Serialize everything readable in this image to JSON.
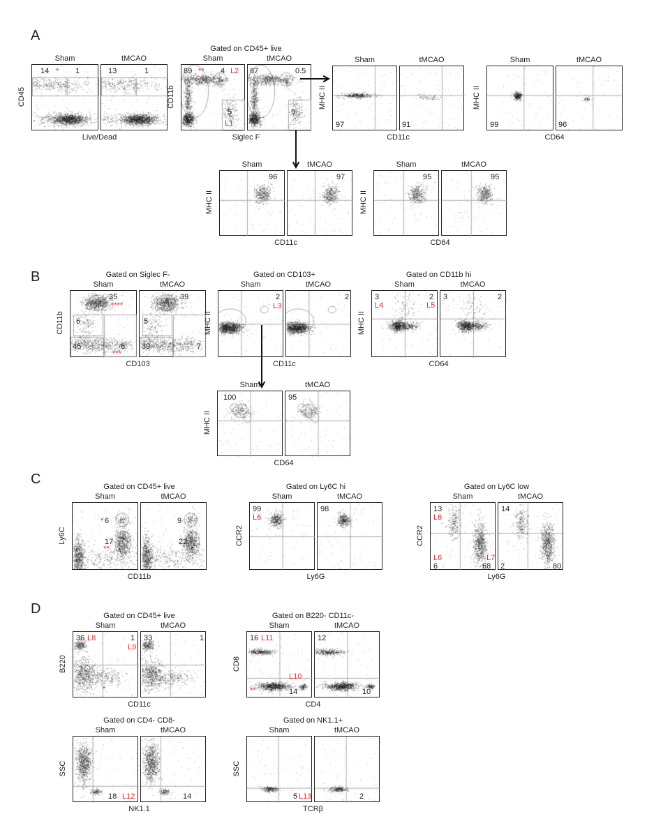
{
  "colors": {
    "text": "#222222",
    "highlight": "#e8262a",
    "gate": "#aaaaaa"
  },
  "panels": [
    {
      "letter": "A"
    },
    {
      "letter": "B"
    },
    {
      "letter": "C"
    },
    {
      "letter": "D"
    }
  ],
  "groups": [
    {
      "id": "A1",
      "title": "",
      "x_axis": "Live/Dead",
      "y_axis": "CD45",
      "plots": [
        {
          "condition": "Sham",
          "labels": [
            {
              "text": "14"
            },
            {
              "text": "*",
              "red": true
            },
            {
              "text": "1"
            }
          ]
        },
        {
          "condition": "tMCAO",
          "labels": [
            {
              "text": "13"
            },
            {
              "text": "1"
            }
          ]
        }
      ]
    },
    {
      "id": "A2",
      "title": "Gated on CD45+ live",
      "x_axis": "Siglec F",
      "y_axis": "CD11b",
      "plots": [
        {
          "condition": "Sham",
          "labels": [
            {
              "text": "89"
            },
            {
              "text": "**",
              "red": true
            },
            {
              "text": "4"
            },
            {
              "text": "L2",
              "red": true
            },
            {
              "text": "5"
            },
            {
              "text": "L1",
              "red": true
            }
          ]
        },
        {
          "condition": "tMCAO",
          "labels": [
            {
              "text": "87"
            },
            {
              "text": "0.5"
            },
            {
              "text": "9"
            }
          ]
        }
      ]
    },
    {
      "id": "A3",
      "title": "",
      "x_axis": "CD11c",
      "y_axis": "MHC II",
      "plots": [
        {
          "condition": "Sham",
          "labels": [
            {
              "text": "97"
            }
          ]
        },
        {
          "condition": "tMCAO",
          "labels": [
            {
              "text": "91"
            }
          ]
        }
      ]
    },
    {
      "id": "A4",
      "title": "",
      "x_axis": "CD64",
      "y_axis": "MHC II",
      "plots": [
        {
          "condition": "Sham",
          "labels": [
            {
              "text": "99"
            }
          ]
        },
        {
          "condition": "tMCAO",
          "labels": [
            {
              "text": "96"
            }
          ]
        }
      ]
    },
    {
      "id": "A5",
      "title": "",
      "x_axis": "CD11c",
      "y_axis": "MHC II",
      "plots": [
        {
          "condition": "Sham",
          "labels": [
            {
              "text": "96"
            }
          ]
        },
        {
          "condition": "tMCAO",
          "labels": [
            {
              "text": "97"
            }
          ]
        }
      ]
    },
    {
      "id": "A6",
      "title": "",
      "x_axis": "CD64",
      "y_axis": "MHC II",
      "plots": [
        {
          "condition": "Sham",
          "labels": [
            {
              "text": "95"
            }
          ]
        },
        {
          "condition": "tMCAO",
          "labels": [
            {
              "text": "95"
            }
          ]
        }
      ]
    },
    {
      "id": "B1",
      "title": "Gated on Siglec F-",
      "x_axis": "CD103",
      "y_axis": "CD11b",
      "plots": [
        {
          "condition": "Sham",
          "labels": [
            {
              "text": "35"
            },
            {
              "text": "****",
              "red": true
            },
            {
              "text": "6"
            },
            {
              "text": "45"
            },
            {
              "text": "6"
            },
            {
              "text": "***",
              "red": true
            }
          ]
        },
        {
          "condition": "tMCAO",
          "labels": [
            {
              "text": "39"
            },
            {
              "text": "5"
            },
            {
              "text": "39"
            },
            {
              "text": "7"
            }
          ]
        }
      ]
    },
    {
      "id": "B2",
      "title": "Gated on CD103+",
      "x_axis": "CD11c",
      "y_axis": "MHC II",
      "plots": [
        {
          "condition": "Sham",
          "labels": [
            {
              "text": "2"
            },
            {
              "text": "L3",
              "red": true
            }
          ]
        },
        {
          "condition": "tMCAO",
          "labels": [
            {
              "text": "2"
            }
          ]
        }
      ]
    },
    {
      "id": "B3",
      "title": "Gated on CD11b hi",
      "x_axis": "CD64",
      "y_axis": "MHC II",
      "plots": [
        {
          "condition": "Sham",
          "labels": [
            {
              "text": "3"
            },
            {
              "text": "L4",
              "red": true
            },
            {
              "text": "2"
            },
            {
              "text": "L5",
              "red": true
            }
          ]
        },
        {
          "condition": "tMCAO",
          "labels": [
            {
              "text": "3"
            },
            {
              "text": "2"
            }
          ]
        }
      ]
    },
    {
      "id": "B4",
      "title": "",
      "x_axis": "CD64",
      "y_axis": "MHC II",
      "plots": [
        {
          "condition": "Sham",
          "labels": [
            {
              "text": "100"
            }
          ]
        },
        {
          "condition": "tMCAO",
          "labels": [
            {
              "text": "95"
            }
          ]
        }
      ]
    },
    {
      "id": "C1",
      "title": "Gated on CD45+ live",
      "x_axis": "CD11b",
      "y_axis": "Ly6C",
      "plots": [
        {
          "condition": "Sham",
          "labels": [
            {
              "text": "*",
              "red": true
            },
            {
              "text": "6"
            },
            {
              "text": "17"
            },
            {
              "text": "**",
              "red": true
            }
          ]
        },
        {
          "condition": "tMCAO",
          "labels": [
            {
              "text": "9"
            },
            {
              "text": "22"
            }
          ]
        }
      ]
    },
    {
      "id": "C2",
      "title": "Gated on Ly6C hi",
      "x_axis": "Ly6G",
      "y_axis": "CCR2",
      "plots": [
        {
          "condition": "Sham",
          "labels": [
            {
              "text": "99"
            },
            {
              "text": "L6",
              "red": true
            }
          ]
        },
        {
          "condition": "tMCAO",
          "labels": [
            {
              "text": "98"
            }
          ]
        }
      ]
    },
    {
      "id": "C3",
      "title": "Gated on Ly6C low",
      "x_axis": "Ly6G",
      "y_axis": "CCR2",
      "plots": [
        {
          "condition": "Sham",
          "labels": [
            {
              "text": "13"
            },
            {
              "text": "L6",
              "red": true
            },
            {
              "text": "L6",
              "red": true
            },
            {
              "text": "6"
            },
            {
              "text": "L7",
              "red": true
            },
            {
              "text": "68"
            }
          ]
        },
        {
          "condition": "tMCAO",
          "labels": [
            {
              "text": "14"
            },
            {
              "text": "2"
            },
            {
              "text": "80"
            }
          ]
        }
      ]
    },
    {
      "id": "D1",
      "title": "Gated on CD45+ live",
      "x_axis": "CD11c",
      "y_axis": "B220",
      "plots": [
        {
          "condition": "Sham",
          "labels": [
            {
              "text": "36"
            },
            {
              "text": "L8",
              "red": true
            },
            {
              "text": "1"
            },
            {
              "text": "L9",
              "red": true
            },
            {
              "text": "*",
              "red": true
            }
          ]
        },
        {
          "condition": "tMCAO",
          "labels": [
            {
              "text": "33"
            },
            {
              "text": "1"
            }
          ]
        }
      ]
    },
    {
      "id": "D2",
      "title": "Gated on B220- CD11c-",
      "x_axis": "CD4",
      "y_axis": "CD8",
      "plots": [
        {
          "condition": "Sham",
          "labels": [
            {
              "text": "16"
            },
            {
              "text": "L11",
              "red": true
            },
            {
              "text": "L10",
              "red": true
            },
            {
              "text": "**",
              "red": true
            },
            {
              "text": "14"
            }
          ]
        },
        {
          "condition": "tMCAO",
          "labels": [
            {
              "text": "12"
            },
            {
              "text": "10"
            }
          ]
        }
      ]
    },
    {
      "id": "D3",
      "title": "Gated on CD4- CD8-",
      "x_axis": "NK1.1",
      "y_axis": "SSC",
      "plots": [
        {
          "condition": "Sham",
          "labels": [
            {
              "text": "18"
            },
            {
              "text": "L12",
              "red": true
            }
          ]
        },
        {
          "condition": "tMCAO",
          "labels": [
            {
              "text": "14"
            }
          ]
        }
      ]
    },
    {
      "id": "D4",
      "title": "Gated on NK1.1+",
      "x_axis": "TCRβ",
      "y_axis": "SSC",
      "plots": [
        {
          "condition": "Sham",
          "labels": [
            {
              "text": "5"
            },
            {
              "text": "L13",
              "red": true
            }
          ]
        },
        {
          "condition": "tMCAO",
          "labels": [
            {
              "text": "2"
            }
          ]
        }
      ]
    }
  ]
}
